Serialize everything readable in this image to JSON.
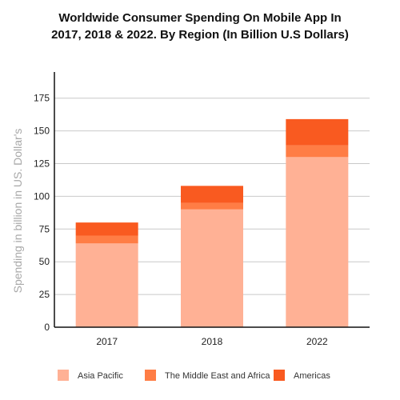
{
  "chart_data": {
    "type": "bar",
    "stacked": true,
    "title_lines": [
      "Worldwide Consumer Spending On Mobile App In",
      "2017, 2018 & 2022. By Region (In Billion U.S Dollars)"
    ],
    "xlabel": "",
    "ylabel": "Spending in billion in US. Dollar's",
    "categories": [
      "2017",
      "2018",
      "2022"
    ],
    "ylim": [
      0,
      195
    ],
    "yticks": [
      0,
      25,
      50,
      75,
      100,
      125,
      150,
      175
    ],
    "grid": true,
    "legend_position": "bottom",
    "series": [
      {
        "name": "Asia Pacific",
        "values": [
          64,
          90,
          130
        ],
        "color": "#ffb195"
      },
      {
        "name": "The Middle East and Africa",
        "values": [
          6,
          5,
          9
        ],
        "color": "#ff7d45"
      },
      {
        "name": "Americas",
        "values": [
          10,
          13,
          20
        ],
        "color": "#f95a20"
      }
    ]
  }
}
